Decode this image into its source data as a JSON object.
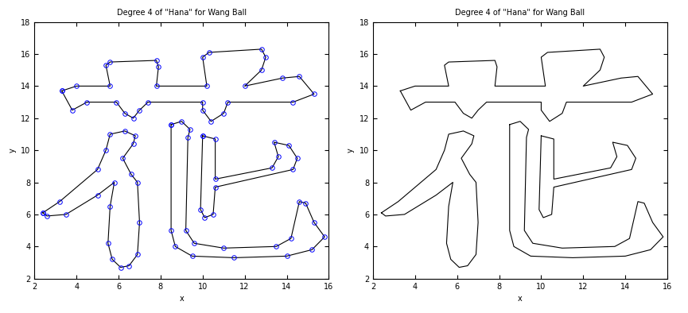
{
  "chart_data": [
    {
      "type": "line",
      "title": "Degree 4 of \"Hana\" for Wang Ball",
      "x_label": "x",
      "y_label": "y",
      "xlim": [
        2,
        16
      ],
      "ylim": [
        2,
        18
      ],
      "xticks": [
        2,
        4,
        6,
        8,
        10,
        12,
        14,
        16
      ],
      "yticks": [
        2,
        4,
        6,
        8,
        10,
        12,
        14,
        16,
        18
      ],
      "grid": false,
      "series": [
        {
          "type": "line",
          "color": "#000000",
          "line_style": "solid",
          "x": [
            3.3,
            4.0,
            5.6,
            5.4,
            5.6,
            7.8,
            7.9,
            7.8,
            10.2,
            10.0,
            10.3,
            12.8,
            13.0,
            12.8,
            12.0,
            13.8,
            14.6,
            15.3,
            14.3,
            11.2,
            11.0,
            10.4,
            10.0,
            10.0,
            7.4,
            7.0,
            6.7,
            6.3,
            5.9,
            4.5,
            3.8,
            3.3
          ],
          "y": [
            13.7,
            14.0,
            14.0,
            15.3,
            15.5,
            15.6,
            15.2,
            14.0,
            14.0,
            15.8,
            16.1,
            16.3,
            15.8,
            15.0,
            14.0,
            14.5,
            14.6,
            13.5,
            13.0,
            13.0,
            12.3,
            11.8,
            12.5,
            13.0,
            13.0,
            12.5,
            12.0,
            12.3,
            13.0,
            13.0,
            12.5,
            13.7
          ]
        },
        {
          "type": "scatter",
          "color": "#0000ff",
          "marker": "o",
          "x": [
            3.3,
            4.0,
            5.6,
            5.4,
            5.6,
            7.8,
            7.9,
            7.8,
            10.2,
            10.0,
            10.3,
            12.8,
            13.0,
            12.8,
            12.0,
            13.8,
            14.6,
            15.3,
            14.3,
            11.2,
            11.0,
            10.4,
            10.0,
            10.0,
            7.4,
            7.0,
            6.7,
            6.3,
            5.9,
            4.5,
            3.8,
            3.3
          ],
          "y": [
            13.7,
            14.0,
            14.0,
            15.3,
            15.5,
            15.6,
            15.2,
            14.0,
            14.0,
            15.8,
            16.1,
            16.3,
            15.8,
            15.0,
            14.0,
            14.5,
            14.6,
            13.5,
            13.0,
            13.0,
            12.3,
            11.8,
            12.5,
            13.0,
            13.0,
            12.5,
            12.0,
            12.3,
            13.0,
            13.0,
            12.5,
            13.7
          ]
        },
        {
          "type": "line",
          "color": "#000000",
          "line_style": "solid",
          "x": [
            2.4,
            3.2,
            5.0,
            5.4,
            5.6,
            6.3,
            6.8,
            6.7,
            6.2,
            6.6,
            6.9,
            7.0,
            6.9,
            6.5,
            6.1,
            5.7,
            5.5,
            5.6,
            5.8,
            5.0,
            3.5,
            2.6,
            2.4
          ],
          "y": [
            6.1,
            6.8,
            8.8,
            10.0,
            11.0,
            11.2,
            10.9,
            10.4,
            9.5,
            8.5,
            8.0,
            5.5,
            3.5,
            2.8,
            2.7,
            3.2,
            4.2,
            6.5,
            8.0,
            7.2,
            6.0,
            5.9,
            6.1
          ]
        },
        {
          "type": "scatter",
          "color": "#0000ff",
          "marker": "o",
          "x": [
            2.4,
            3.2,
            5.0,
            5.4,
            5.6,
            6.3,
            6.8,
            6.7,
            6.2,
            6.6,
            6.9,
            7.0,
            6.9,
            6.5,
            6.1,
            5.7,
            5.5,
            5.6,
            5.8,
            5.0,
            3.5,
            2.6,
            2.4
          ],
          "y": [
            6.1,
            6.8,
            8.8,
            10.0,
            11.0,
            11.2,
            10.9,
            10.4,
            9.5,
            8.5,
            8.0,
            5.5,
            3.5,
            2.8,
            2.7,
            3.2,
            4.2,
            6.5,
            8.0,
            7.2,
            6.0,
            5.9,
            6.1
          ]
        },
        {
          "type": "line",
          "color": "#000000",
          "line_style": "solid",
          "x": [
            8.5,
            9.0,
            9.4,
            9.3,
            9.2,
            9.6,
            11.0,
            13.5,
            14.2,
            14.6,
            14.9,
            15.3,
            15.8,
            15.2,
            14.0,
            11.5,
            9.5,
            8.7,
            8.5,
            8.5
          ],
          "y": [
            11.6,
            11.8,
            11.3,
            10.8,
            5.0,
            4.2,
            3.9,
            4.0,
            4.5,
            6.8,
            6.7,
            5.5,
            4.6,
            3.8,
            3.4,
            3.3,
            3.4,
            4.0,
            5.0,
            11.6
          ]
        },
        {
          "type": "scatter",
          "color": "#0000ff",
          "marker": "o",
          "x": [
            8.5,
            9.0,
            9.4,
            9.3,
            9.2,
            9.6,
            11.0,
            13.5,
            14.2,
            14.6,
            14.9,
            15.3,
            15.8,
            15.2,
            14.0,
            11.5,
            9.5,
            8.7,
            8.5,
            8.5
          ],
          "y": [
            11.6,
            11.8,
            11.3,
            10.8,
            5.0,
            4.2,
            3.9,
            4.0,
            4.5,
            6.8,
            6.7,
            5.5,
            4.6,
            3.8,
            3.4,
            3.3,
            3.4,
            4.0,
            5.0,
            11.6
          ]
        },
        {
          "type": "line",
          "color": "#000000",
          "line_style": "solid",
          "x": [
            10.0,
            10.6,
            10.6,
            13.3,
            13.6,
            13.4,
            14.1,
            14.5,
            14.3,
            10.6,
            10.5,
            10.1,
            9.9,
            10.0
          ],
          "y": [
            10.9,
            10.7,
            8.2,
            8.9,
            9.6,
            10.5,
            10.3,
            9.5,
            8.8,
            7.7,
            6.0,
            5.8,
            6.3,
            10.9
          ]
        },
        {
          "type": "scatter",
          "color": "#0000ff",
          "marker": "o",
          "x": [
            10.0,
            10.6,
            10.6,
            13.3,
            13.6,
            13.4,
            14.1,
            14.5,
            14.3,
            10.6,
            10.5,
            10.1,
            9.9,
            10.0
          ],
          "y": [
            10.9,
            10.7,
            8.2,
            8.9,
            9.6,
            10.5,
            10.3,
            9.5,
            8.8,
            7.7,
            6.0,
            5.8,
            6.3,
            10.9
          ]
        }
      ]
    },
    {
      "type": "line",
      "title": "Degree 4 of \"Hana\" for Wang Ball",
      "x_label": "x",
      "y_label": "y",
      "xlim": [
        2,
        16
      ],
      "ylim": [
        2,
        18
      ],
      "xticks": [
        2,
        4,
        6,
        8,
        10,
        12,
        14,
        16
      ],
      "yticks": [
        2,
        4,
        6,
        8,
        10,
        12,
        14,
        16,
        18
      ],
      "grid": false,
      "series": [
        {
          "type": "line",
          "color": "#000000",
          "line_style": "solid",
          "x": [
            3.3,
            4.0,
            5.6,
            5.4,
            5.6,
            7.8,
            7.9,
            7.8,
            10.2,
            10.0,
            10.3,
            12.8,
            13.0,
            12.8,
            12.0,
            13.8,
            14.6,
            15.3,
            14.3,
            11.2,
            11.0,
            10.4,
            10.0,
            10.0,
            7.4,
            7.0,
            6.7,
            6.3,
            5.9,
            4.5,
            3.8,
            3.3
          ],
          "y": [
            13.7,
            14.0,
            14.0,
            15.3,
            15.5,
            15.6,
            15.2,
            14.0,
            14.0,
            15.8,
            16.1,
            16.3,
            15.8,
            15.0,
            14.0,
            14.5,
            14.6,
            13.5,
            13.0,
            13.0,
            12.3,
            11.8,
            12.5,
            13.0,
            13.0,
            12.5,
            12.0,
            12.3,
            13.0,
            13.0,
            12.5,
            13.7
          ]
        },
        {
          "type": "line",
          "color": "#000000",
          "line_style": "solid",
          "x": [
            2.4,
            3.2,
            5.0,
            5.4,
            5.6,
            6.3,
            6.8,
            6.7,
            6.2,
            6.6,
            6.9,
            7.0,
            6.9,
            6.5,
            6.1,
            5.7,
            5.5,
            5.6,
            5.8,
            5.0,
            3.5,
            2.6,
            2.4
          ],
          "y": [
            6.1,
            6.8,
            8.8,
            10.0,
            11.0,
            11.2,
            10.9,
            10.4,
            9.5,
            8.5,
            8.0,
            5.5,
            3.5,
            2.8,
            2.7,
            3.2,
            4.2,
            6.5,
            8.0,
            7.2,
            6.0,
            5.9,
            6.1
          ]
        },
        {
          "type": "line",
          "color": "#000000",
          "line_style": "solid",
          "x": [
            8.5,
            9.0,
            9.4,
            9.3,
            9.2,
            9.6,
            11.0,
            13.5,
            14.2,
            14.6,
            14.9,
            15.3,
            15.8,
            15.2,
            14.0,
            11.5,
            9.5,
            8.7,
            8.5,
            8.5
          ],
          "y": [
            11.6,
            11.8,
            11.3,
            10.8,
            5.0,
            4.2,
            3.9,
            4.0,
            4.5,
            6.8,
            6.7,
            5.5,
            4.6,
            3.8,
            3.4,
            3.3,
            3.4,
            4.0,
            5.0,
            11.6
          ]
        },
        {
          "type": "line",
          "color": "#000000",
          "line_style": "solid",
          "x": [
            10.0,
            10.6,
            10.6,
            13.3,
            13.6,
            13.4,
            14.1,
            14.5,
            14.3,
            10.6,
            10.5,
            10.1,
            9.9,
            10.0
          ],
          "y": [
            10.9,
            10.7,
            8.2,
            8.9,
            9.6,
            10.5,
            10.3,
            9.5,
            8.8,
            7.7,
            6.0,
            5.8,
            6.3,
            10.9
          ]
        }
      ]
    }
  ]
}
